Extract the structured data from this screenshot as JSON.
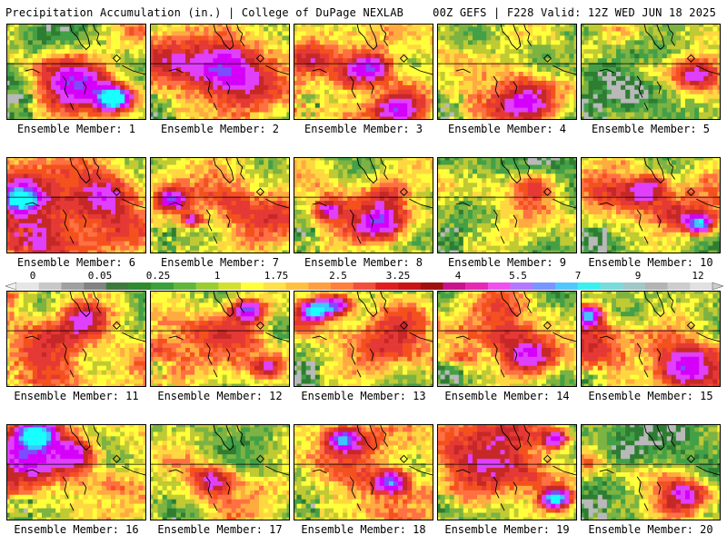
{
  "header": {
    "left": "Precipitation Accumulation (in.) | College of DuPage NEXLAB",
    "right": "00Z GEFS | F228 Valid: 12Z WED JUN 18 2025"
  },
  "colorbar": {
    "tick_labels": [
      "0",
      "0.05",
      "0.25",
      "1",
      "1.75",
      "2.5",
      "3.25",
      "4",
      "5.5",
      "7",
      "9",
      "12"
    ],
    "colors": [
      "#e6e6e6",
      "#c8c8c8",
      "#a0a0a0",
      "#828282",
      "#3c7a3c",
      "#2e8b2e",
      "#3aa03a",
      "#5fb83a",
      "#9acd32",
      "#d4e030",
      "#ffff3c",
      "#ffe14a",
      "#ffc040",
      "#ffa040",
      "#ff7f3c",
      "#f0503c",
      "#e01e1e",
      "#c81414",
      "#a01010",
      "#c8148c",
      "#e628b4",
      "#f050f0",
      "#b478ff",
      "#7896ff",
      "#50c8ff",
      "#3cf0f0",
      "#78dcdc",
      "#a0c8c8",
      "#b4b4b4",
      "#cdcdcd",
      "#e1e1e1"
    ]
  },
  "members": [
    {
      "label": "Ensemble Member: 1",
      "seed": 11,
      "bias": 0.55,
      "hot": [
        [
          0.78,
          0.78,
          0.08,
          3.2
        ],
        [
          0.5,
          0.65,
          0.18,
          1.6
        ]
      ]
    },
    {
      "label": "Ensemble Member: 2",
      "seed": 23,
      "bias": 0.75,
      "hot": [
        [
          0.6,
          0.5,
          0.16,
          1.4
        ]
      ]
    },
    {
      "label": "Ensemble Member: 3",
      "seed": 37,
      "bias": 0.7,
      "hot": [
        [
          0.55,
          0.45,
          0.1,
          2.0
        ],
        [
          0.75,
          0.9,
          0.12,
          1.8
        ]
      ]
    },
    {
      "label": "Ensemble Member: 4",
      "seed": 41,
      "bias": 0.65,
      "hot": [
        [
          0.65,
          0.8,
          0.15,
          1.9
        ]
      ]
    },
    {
      "label": "Ensemble Member: 5",
      "seed": 53,
      "bias": 0.6,
      "hot": [
        [
          0.85,
          0.5,
          0.12,
          1.3
        ]
      ]
    },
    {
      "label": "Ensemble Member: 6",
      "seed": 61,
      "bias": 0.75,
      "hot": [
        [
          0.1,
          0.45,
          0.08,
          2.2
        ],
        [
          0.7,
          0.4,
          0.15,
          1.5
        ]
      ]
    },
    {
      "label": "Ensemble Member: 7",
      "seed": 71,
      "bias": 0.7,
      "hot": [
        [
          0.15,
          0.45,
          0.08,
          2.1
        ],
        [
          0.3,
          0.65,
          0.06,
          1.8
        ]
      ]
    },
    {
      "label": "Ensemble Member: 8",
      "seed": 83,
      "bias": 0.65,
      "hot": [
        [
          0.6,
          0.7,
          0.12,
          1.8
        ],
        [
          0.25,
          0.55,
          0.08,
          1.6
        ]
      ]
    },
    {
      "label": "Ensemble Member: 9",
      "seed": 97,
      "bias": 0.5,
      "hot": [
        [
          0.7,
          0.3,
          0.12,
          1.2
        ]
      ]
    },
    {
      "label": "Ensemble Member: 10",
      "seed": 101,
      "bias": 0.6,
      "hot": [
        [
          0.85,
          0.7,
          0.07,
          2.6
        ],
        [
          0.5,
          0.3,
          0.1,
          1.5
        ]
      ]
    },
    {
      "label": "Ensemble Member: 11",
      "seed": 113,
      "bias": 0.7,
      "hot": [
        [
          0.55,
          0.3,
          0.12,
          1.5
        ]
      ]
    },
    {
      "label": "Ensemble Member: 12",
      "seed": 127,
      "bias": 0.55,
      "hot": [
        [
          0.7,
          0.2,
          0.08,
          2.0
        ],
        [
          0.85,
          0.8,
          0.08,
          1.6
        ]
      ]
    },
    {
      "label": "Ensemble Member: 13",
      "seed": 131,
      "bias": 0.5,
      "hot": [
        [
          0.15,
          0.2,
          0.07,
          2.6
        ],
        [
          0.3,
          0.15,
          0.08,
          2.3
        ]
      ]
    },
    {
      "label": "Ensemble Member: 14",
      "seed": 149,
      "bias": 0.55,
      "hot": [
        [
          0.65,
          0.7,
          0.12,
          1.4
        ]
      ]
    },
    {
      "label": "Ensemble Member: 15",
      "seed": 151,
      "bias": 0.6,
      "hot": [
        [
          0.05,
          0.25,
          0.07,
          2.4
        ],
        [
          0.75,
          0.8,
          0.12,
          1.5
        ]
      ]
    },
    {
      "label": "Ensemble Member: 16",
      "seed": 163,
      "bias": 0.75,
      "hot": [
        [
          0.2,
          0.1,
          0.1,
          2.4
        ],
        [
          0.5,
          0.3,
          0.1,
          1.7
        ]
      ]
    },
    {
      "label": "Ensemble Member: 17",
      "seed": 173,
      "bias": 0.55,
      "hot": [
        [
          0.45,
          0.6,
          0.1,
          1.4
        ]
      ]
    },
    {
      "label": "Ensemble Member: 18",
      "seed": 181,
      "bias": 0.7,
      "hot": [
        [
          0.35,
          0.15,
          0.08,
          2.0
        ],
        [
          0.7,
          0.6,
          0.08,
          2.2
        ]
      ]
    },
    {
      "label": "Ensemble Member: 19",
      "seed": 191,
      "bias": 0.6,
      "hot": [
        [
          0.85,
          0.78,
          0.07,
          3.2
        ],
        [
          0.85,
          0.15,
          0.07,
          1.8
        ]
      ]
    },
    {
      "label": "Ensemble Member: 20",
      "seed": 199,
      "bias": 0.4,
      "hot": [
        [
          0.75,
          0.75,
          0.12,
          1.7
        ]
      ]
    }
  ]
}
